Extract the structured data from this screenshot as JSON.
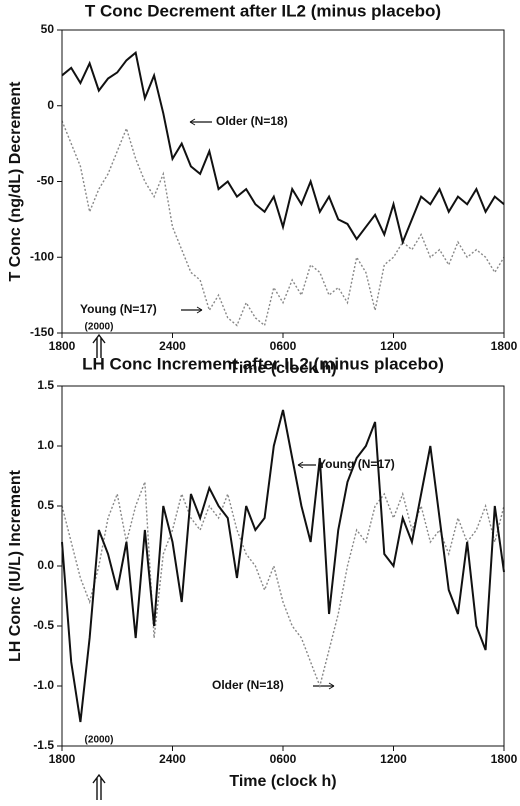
{
  "chart_data": [
    {
      "type": "line",
      "title": "T Conc Decrement after IL2 (minus placebo)",
      "y_label": "T Conc (ng/dL) Decrement",
      "x_label": "Time (clock h)",
      "x": [
        18,
        18.5,
        19,
        19.5,
        20,
        20.5,
        21,
        21.5,
        22,
        22.5,
        23,
        23.5,
        24,
        24.5,
        25,
        25.5,
        26,
        26.5,
        27,
        27.5,
        28,
        28.5,
        29,
        29.5,
        30,
        30.5,
        31,
        31.5,
        32,
        32.5,
        33,
        33.5,
        34,
        34.5,
        35,
        35.5,
        36,
        36.5,
        37,
        37.5,
        38,
        38.5,
        39,
        39.5,
        40,
        40.5,
        41,
        41.5,
        42
      ],
      "series": [
        {
          "name": "Older (N=18)",
          "color": "#111111",
          "style": "solid",
          "values": [
            20,
            25,
            15,
            28,
            10,
            18,
            22,
            30,
            35,
            5,
            20,
            -5,
            -35,
            -25,
            -40,
            -45,
            -30,
            -55,
            -50,
            -60,
            -55,
            -65,
            -70,
            -60,
            -80,
            -55,
            -65,
            -50,
            -70,
            -60,
            -75,
            -78,
            -88,
            -80,
            -72,
            -85,
            -65,
            -90,
            -75,
            -60,
            -65,
            -55,
            -70,
            -60,
            -65,
            -55,
            -70,
            -60,
            -65
          ]
        },
        {
          "name": "Young (N=17)",
          "color": "#888888",
          "style": "dotted",
          "values": [
            -10,
            -25,
            -40,
            -70,
            -55,
            -45,
            -30,
            -15,
            -35,
            -50,
            -60,
            -45,
            -80,
            -95,
            -110,
            -115,
            -135,
            -125,
            -140,
            -145,
            -130,
            -140,
            -145,
            -120,
            -130,
            -115,
            -125,
            -105,
            -110,
            -125,
            -120,
            -130,
            -100,
            -110,
            -135,
            -105,
            -100,
            -90,
            -95,
            -85,
            -100,
            -95,
            -105,
            -90,
            -100,
            -95,
            -100,
            -110,
            -100
          ]
        }
      ],
      "xlim": [
        18,
        42
      ],
      "xticks": [
        {
          "value": 18,
          "label": "1800"
        },
        {
          "value": 24,
          "label": "2400"
        },
        {
          "value": 30,
          "label": "0600"
        },
        {
          "value": 36,
          "label": "1200"
        },
        {
          "value": 42,
          "label": "1800"
        }
      ],
      "ylim": [
        -150,
        50
      ],
      "yticks": [
        50,
        0,
        -50,
        -100,
        -150
      ],
      "grid": false,
      "annotation": "(2000)"
    },
    {
      "type": "line",
      "title": "LH Conc Increment after IL2 (minus placebo)",
      "y_label": "LH Conc (IU/L) Increment",
      "x_label": "Time (clock h)",
      "x": [
        18,
        18.5,
        19,
        19.5,
        20,
        20.5,
        21,
        21.5,
        22,
        22.5,
        23,
        23.5,
        24,
        24.5,
        25,
        25.5,
        26,
        26.5,
        27,
        27.5,
        28,
        28.5,
        29,
        29.5,
        30,
        30.5,
        31,
        31.5,
        32,
        32.5,
        33,
        33.5,
        34,
        34.5,
        35,
        35.5,
        36,
        36.5,
        37,
        37.5,
        38,
        38.5,
        39,
        39.5,
        40,
        40.5,
        41,
        41.5,
        42
      ],
      "series": [
        {
          "name": "Young (N=17)",
          "color": "#111111",
          "style": "solid",
          "values": [
            0.2,
            -0.8,
            -1.3,
            -0.6,
            0.3,
            0.1,
            -0.2,
            0.2,
            -0.6,
            0.3,
            -0.5,
            0.5,
            0.2,
            -0.3,
            0.6,
            0.4,
            0.65,
            0.5,
            0.4,
            -0.1,
            0.5,
            0.3,
            0.4,
            1.0,
            1.3,
            0.9,
            0.5,
            0.2,
            0.9,
            -0.4,
            0.3,
            0.7,
            0.9,
            1.0,
            1.2,
            0.1,
            0.0,
            0.4,
            0.2,
            0.6,
            1.0,
            0.4,
            -0.2,
            -0.4,
            0.2,
            -0.5,
            -0.7,
            0.5,
            -0.05
          ]
        },
        {
          "name": "Older (N=18)",
          "color": "#888888",
          "style": "dotted",
          "values": [
            0.5,
            0.2,
            -0.1,
            -0.3,
            0.0,
            0.4,
            0.6,
            0.2,
            0.5,
            0.7,
            -0.6,
            0.1,
            0.3,
            0.6,
            0.4,
            0.3,
            0.5,
            0.4,
            0.6,
            0.3,
            0.1,
            0.0,
            -0.2,
            0.0,
            -0.3,
            -0.5,
            -0.6,
            -0.8,
            -1.0,
            -0.7,
            -0.4,
            0.0,
            0.3,
            0.2,
            0.5,
            0.6,
            0.4,
            0.6,
            0.3,
            0.5,
            0.2,
            0.3,
            0.1,
            0.4,
            0.2,
            0.3,
            0.5,
            0.2,
            0.5
          ]
        }
      ],
      "xlim": [
        18,
        42
      ],
      "xticks": [
        {
          "value": 18,
          "label": "1800"
        },
        {
          "value": 24,
          "label": "2400"
        },
        {
          "value": 30,
          "label": "0600"
        },
        {
          "value": 36,
          "label": "1200"
        },
        {
          "value": 42,
          "label": "1800"
        }
      ],
      "ylim": [
        -1.5,
        1.5
      ],
      "yticks": [
        1.5,
        {
          "value": 1,
          "label": "1.0"
        },
        0.5,
        {
          "value": 0,
          "label": "0.0"
        },
        -0.5,
        {
          "value": -1,
          "label": "-1.0"
        },
        -1.5
      ],
      "grid": false,
      "annotation": "(2000)"
    }
  ]
}
